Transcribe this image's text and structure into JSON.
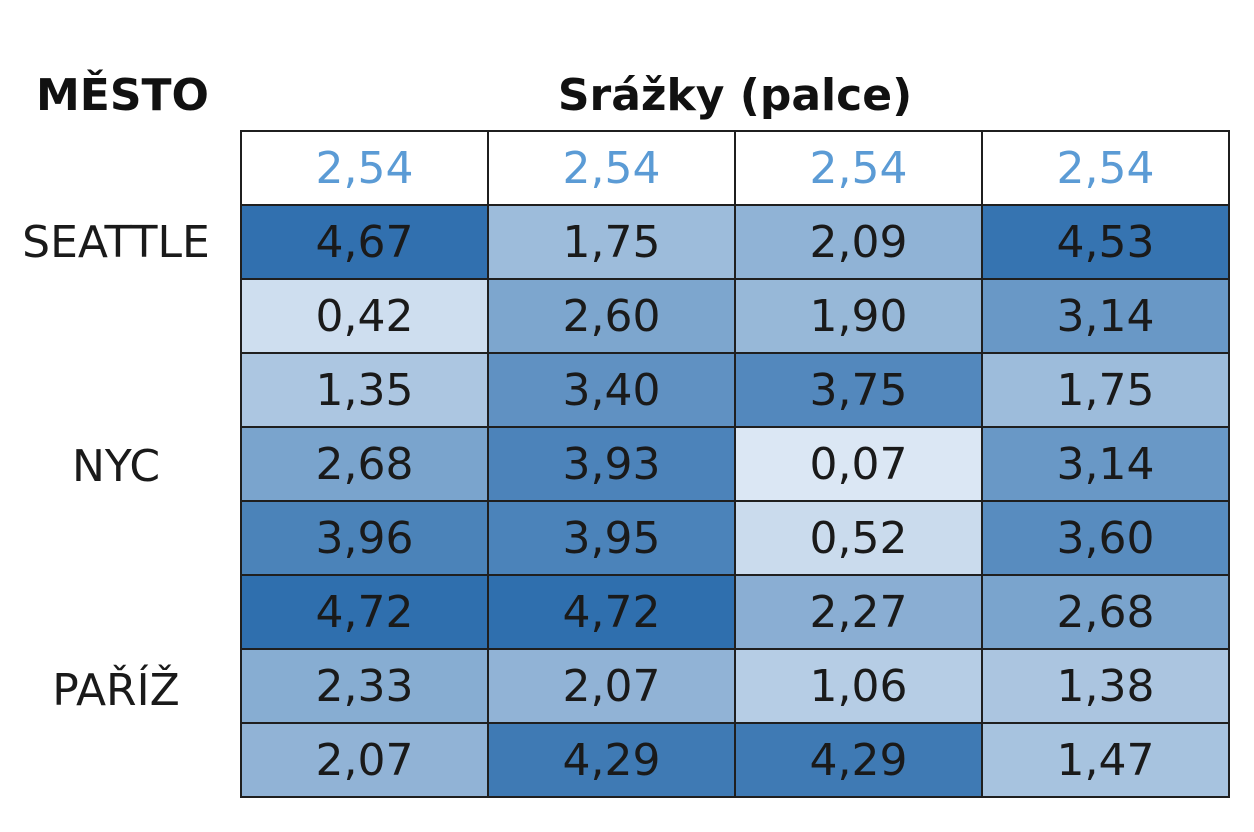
{
  "headers": {
    "city": "MĚSTO",
    "value": "Srážky (palce)"
  },
  "cities": [
    "SEATTLE",
    "NYC",
    "PAŘÍŽ"
  ],
  "colors": {
    "low": "#dbe7f4",
    "high": "#2f6fae",
    "reference_text": "#5b9bd5",
    "border": "#1f1f1f"
  },
  "chart_data": {
    "type": "heatmap",
    "title": "",
    "reference_row": [
      "2,54",
      "2,54",
      "2,54",
      "2,54"
    ],
    "rows": [
      {
        "city": "SEATTLE",
        "values": [
          4.67,
          1.75,
          2.09,
          4.53
        ]
      },
      {
        "city": "",
        "values": [
          0.42,
          2.6,
          1.9,
          3.14
        ]
      },
      {
        "city": "",
        "values": [
          1.35,
          3.4,
          3.75,
          1.75
        ]
      },
      {
        "city": "NYC",
        "values": [
          2.68,
          3.93,
          0.07,
          3.14
        ]
      },
      {
        "city": "",
        "values": [
          3.96,
          3.95,
          0.52,
          3.6
        ]
      },
      {
        "city": "",
        "values": [
          4.72,
          4.72,
          2.27,
          2.68
        ]
      },
      {
        "city": "PAŘÍŽ",
        "values": [
          2.33,
          2.07,
          1.06,
          1.38
        ]
      },
      {
        "city": "",
        "values": [
          2.07,
          4.29,
          4.29,
          1.47
        ]
      }
    ],
    "value_range": [
      0.07,
      4.72
    ],
    "decimal_separator": ","
  }
}
